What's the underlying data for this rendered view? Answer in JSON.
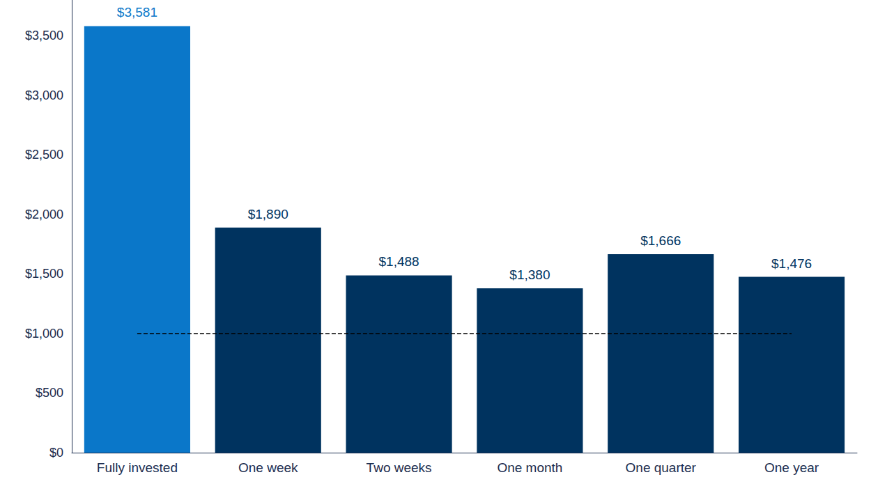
{
  "chart_data": {
    "type": "bar",
    "categories": [
      "Fully invested",
      "One week",
      "Two weeks",
      "One month",
      "One quarter",
      "One year"
    ],
    "values": [
      3581,
      1890,
      1488,
      1380,
      1666,
      1476
    ],
    "value_labels": [
      "$3,581",
      "$1,890",
      "$1,488",
      "$1,380",
      "$1,666",
      "$1,476"
    ],
    "colors": [
      "#0a77c9",
      "#00335f",
      "#00335f",
      "#00335f",
      "#00335f",
      "#00335f"
    ],
    "ylim": [
      0,
      3800
    ],
    "yticks": [
      {
        "value": 0,
        "label": "$0"
      },
      {
        "value": 500,
        "label": "$500"
      },
      {
        "value": 1000,
        "label": "$1,000"
      },
      {
        "value": 1500,
        "label": "$1,500"
      },
      {
        "value": 2000,
        "label": "$2,000"
      },
      {
        "value": 2500,
        "label": "$2,500"
      },
      {
        "value": 3000,
        "label": "$3,000"
      },
      {
        "value": 3500,
        "label": "$3,500"
      }
    ],
    "reference_line": 1000,
    "grid": false,
    "data_labels": true
  }
}
